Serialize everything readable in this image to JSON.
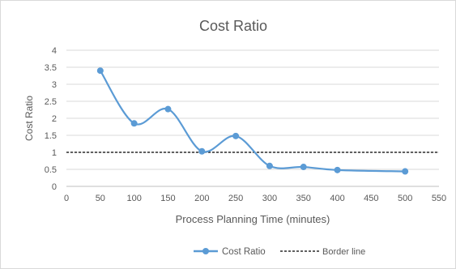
{
  "chart_data": {
    "type": "line",
    "title": "Cost Ratio",
    "xlabel": "Process Planning Time (minutes)",
    "ylabel": "Cost Ratio",
    "xlim": [
      0,
      550
    ],
    "ylim": [
      0,
      4
    ],
    "xticks": [
      0,
      50,
      100,
      150,
      200,
      250,
      300,
      350,
      400,
      450,
      500,
      550
    ],
    "yticks": [
      0,
      0.5,
      1,
      1.5,
      2,
      2.5,
      3,
      3.5,
      4
    ],
    "grid": true,
    "legend_position": "bottom",
    "series": [
      {
        "name": "Cost Ratio",
        "color": "#5b9bd5",
        "smooth": true,
        "markers": true,
        "x": [
          50,
          100,
          150,
          200,
          250,
          300,
          350,
          400,
          500
        ],
        "y": [
          3.4,
          1.85,
          2.27,
          1.03,
          1.48,
          0.6,
          0.57,
          0.48,
          0.44
        ]
      },
      {
        "name": "Border line",
        "color": "#000000",
        "dashed": true,
        "markers": false,
        "x": [
          0,
          550
        ],
        "y": [
          1,
          1
        ]
      }
    ]
  }
}
